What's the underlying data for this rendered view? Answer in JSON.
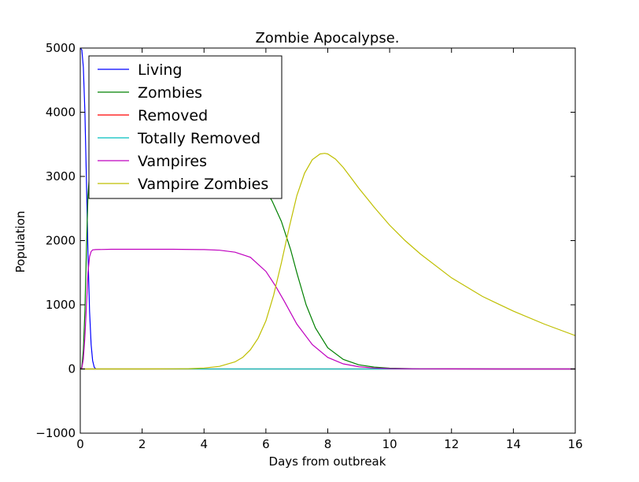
{
  "chart_data": {
    "type": "line",
    "title": "Zombie Apocalypse.",
    "xlabel": "Days from outbreak",
    "ylabel": "Population",
    "xlim": [
      0,
      16
    ],
    "ylim": [
      -1000,
      5000
    ],
    "xticks": [
      0,
      2,
      4,
      6,
      8,
      10,
      12,
      14,
      16
    ],
    "yticks": [
      -1000,
      0,
      1000,
      2000,
      3000,
      4000,
      5000
    ],
    "xtick_labels": [
      "0",
      "2",
      "4",
      "6",
      "8",
      "10",
      "12",
      "14",
      "16"
    ],
    "ytick_labels": [
      "−1000",
      "0",
      "1000",
      "2000",
      "3000",
      "4000",
      "5000"
    ],
    "grid": false,
    "legend_position": "top-left",
    "series": [
      {
        "name": "Living",
        "color": "#0000ff",
        "x": [
          0,
          0.05,
          0.1,
          0.15,
          0.2,
          0.25,
          0.3,
          0.35,
          0.4,
          0.45,
          0.5
        ],
        "y": [
          5000,
          4970,
          4700,
          4000,
          2900,
          1800,
          900,
          380,
          130,
          30,
          0
        ]
      },
      {
        "name": "Zombies",
        "color": "#008000",
        "x": [
          0,
          0.05,
          0.1,
          0.15,
          0.2,
          0.25,
          0.3,
          0.35,
          0.4,
          0.5,
          1,
          2,
          3,
          4,
          5,
          5.5,
          6,
          6.2,
          6.5,
          6.8,
          7,
          7.3,
          7.6,
          8,
          8.5,
          9,
          9.5,
          10,
          11,
          12,
          14,
          16
        ],
        "y": [
          0,
          30,
          300,
          900,
          1900,
          2700,
          3050,
          3130,
          3150,
          3150,
          3150,
          3150,
          3150,
          3140,
          3060,
          2960,
          2770,
          2620,
          2300,
          1860,
          1500,
          1000,
          640,
          330,
          150,
          65,
          30,
          12,
          3,
          1,
          0,
          0
        ]
      },
      {
        "name": "Removed",
        "color": "#ff0000",
        "x": [
          0,
          16
        ],
        "y": [
          0,
          0
        ]
      },
      {
        "name": "Totally Removed",
        "color": "#00bfbf",
        "x": [
          0,
          16
        ],
        "y": [
          0,
          0
        ]
      },
      {
        "name": "Vampires",
        "color": "#bf00bf",
        "x": [
          0,
          0.05,
          0.1,
          0.15,
          0.2,
          0.25,
          0.3,
          0.35,
          0.4,
          0.5,
          1,
          2,
          3,
          4,
          4.5,
          5,
          5.5,
          6,
          6.3,
          6.6,
          7,
          7.5,
          8,
          8.5,
          9,
          9.5,
          10,
          11,
          12,
          14,
          16
        ],
        "y": [
          0,
          15,
          150,
          500,
          1000,
          1500,
          1750,
          1830,
          1855,
          1860,
          1865,
          1865,
          1865,
          1860,
          1850,
          1820,
          1740,
          1520,
          1300,
          1050,
          700,
          380,
          180,
          80,
          35,
          15,
          6,
          2,
          1,
          0,
          0
        ]
      },
      {
        "name": "Vampire Zombies",
        "color": "#bfbf00",
        "x": [
          0,
          1,
          2,
          3,
          3.5,
          4,
          4.5,
          5,
          5.25,
          5.5,
          5.75,
          6,
          6.25,
          6.5,
          6.75,
          7,
          7.25,
          7.5,
          7.75,
          7.9,
          8,
          8.25,
          8.5,
          8.75,
          9,
          9.5,
          10,
          10.5,
          11,
          12,
          13,
          14,
          15,
          16
        ],
        "y": [
          0,
          0,
          0,
          2,
          5,
          15,
          40,
          110,
          180,
          300,
          480,
          750,
          1150,
          1650,
          2200,
          2700,
          3050,
          3260,
          3350,
          3360,
          3350,
          3270,
          3140,
          2980,
          2820,
          2520,
          2240,
          2000,
          1790,
          1420,
          1130,
          900,
          700,
          520
        ]
      }
    ]
  }
}
